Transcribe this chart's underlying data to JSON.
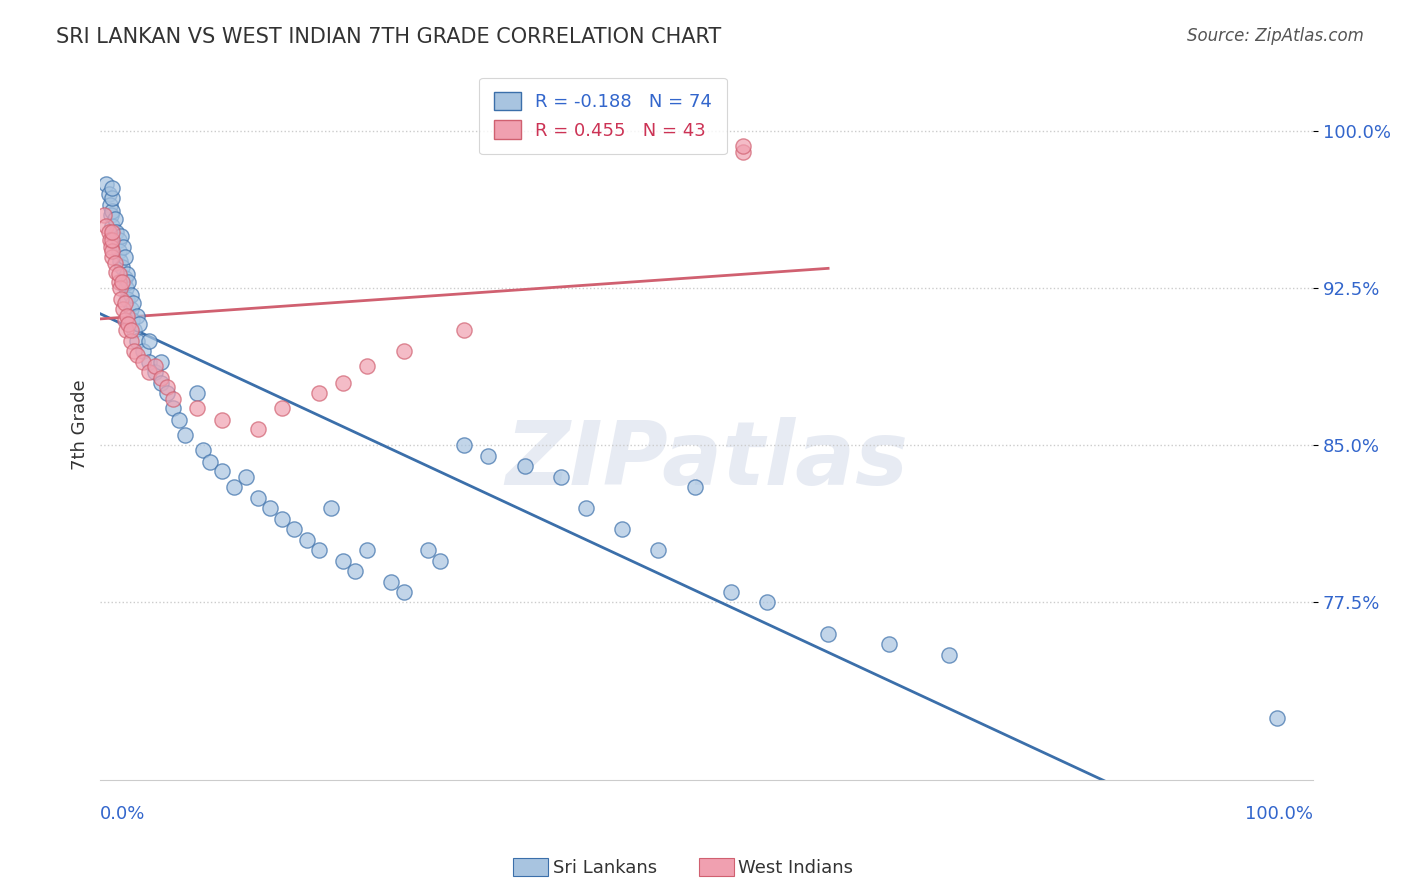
{
  "title": "SRI LANKAN VS WEST INDIAN 7TH GRADE CORRELATION CHART",
  "source": "Source: ZipAtlas.com",
  "ylabel": "7th Grade",
  "y_ticks": [
    0.775,
    0.85,
    0.925,
    1.0
  ],
  "y_tick_labels": [
    "77.5%",
    "85.0%",
    "92.5%",
    "100.0%"
  ],
  "x_range": [
    0.0,
    1.0
  ],
  "y_range": [
    0.69,
    1.03
  ],
  "legend_sri_r": "R = -0.188",
  "legend_sri_n": "N = 74",
  "legend_wi_r": "R = 0.455",
  "legend_wi_n": "N = 43",
  "sri_color": "#a8c4e0",
  "sri_line_color": "#3b6faa",
  "wi_color": "#f0a0b0",
  "wi_line_color": "#d06070",
  "watermark": "ZIPatlas",
  "sri_x": [
    0.005,
    0.007,
    0.008,
    0.009,
    0.01,
    0.01,
    0.01,
    0.01,
    0.012,
    0.013,
    0.015,
    0.015,
    0.016,
    0.017,
    0.018,
    0.019,
    0.02,
    0.02,
    0.021,
    0.022,
    0.022,
    0.023,
    0.025,
    0.025,
    0.026,
    0.027,
    0.028,
    0.03,
    0.03,
    0.032,
    0.035,
    0.04,
    0.04,
    0.045,
    0.05,
    0.05,
    0.055,
    0.06,
    0.065,
    0.07,
    0.08,
    0.085,
    0.09,
    0.1,
    0.11,
    0.12,
    0.13,
    0.14,
    0.15,
    0.16,
    0.17,
    0.18,
    0.19,
    0.2,
    0.21,
    0.22,
    0.24,
    0.25,
    0.27,
    0.28,
    0.3,
    0.32,
    0.35,
    0.38,
    0.4,
    0.43,
    0.46,
    0.49,
    0.52,
    0.55,
    0.6,
    0.65,
    0.7,
    0.97
  ],
  "sri_y": [
    0.975,
    0.97,
    0.965,
    0.96,
    0.955,
    0.962,
    0.968,
    0.973,
    0.958,
    0.952,
    0.948,
    0.943,
    0.938,
    0.95,
    0.935,
    0.945,
    0.93,
    0.94,
    0.925,
    0.932,
    0.92,
    0.928,
    0.915,
    0.922,
    0.91,
    0.918,
    0.905,
    0.912,
    0.9,
    0.908,
    0.895,
    0.89,
    0.9,
    0.885,
    0.88,
    0.89,
    0.875,
    0.868,
    0.862,
    0.855,
    0.875,
    0.848,
    0.842,
    0.838,
    0.83,
    0.835,
    0.825,
    0.82,
    0.815,
    0.81,
    0.805,
    0.8,
    0.82,
    0.795,
    0.79,
    0.8,
    0.785,
    0.78,
    0.8,
    0.795,
    0.85,
    0.845,
    0.84,
    0.835,
    0.82,
    0.81,
    0.8,
    0.83,
    0.78,
    0.775,
    0.76,
    0.755,
    0.75,
    0.72
  ],
  "wi_x": [
    0.003,
    0.005,
    0.007,
    0.008,
    0.009,
    0.01,
    0.01,
    0.01,
    0.01,
    0.012,
    0.013,
    0.015,
    0.015,
    0.016,
    0.017,
    0.018,
    0.019,
    0.02,
    0.02,
    0.021,
    0.022,
    0.023,
    0.025,
    0.025,
    0.028,
    0.03,
    0.035,
    0.04,
    0.045,
    0.05,
    0.055,
    0.06,
    0.08,
    0.1,
    0.13,
    0.15,
    0.18,
    0.2,
    0.22,
    0.25,
    0.3,
    0.53,
    0.53
  ],
  "wi_y": [
    0.96,
    0.955,
    0.952,
    0.948,
    0.945,
    0.94,
    0.943,
    0.948,
    0.952,
    0.937,
    0.933,
    0.928,
    0.932,
    0.925,
    0.92,
    0.928,
    0.915,
    0.91,
    0.918,
    0.905,
    0.912,
    0.908,
    0.9,
    0.905,
    0.895,
    0.893,
    0.89,
    0.885,
    0.888,
    0.882,
    0.878,
    0.872,
    0.868,
    0.862,
    0.858,
    0.868,
    0.875,
    0.88,
    0.888,
    0.895,
    0.905,
    0.99,
    0.993
  ]
}
